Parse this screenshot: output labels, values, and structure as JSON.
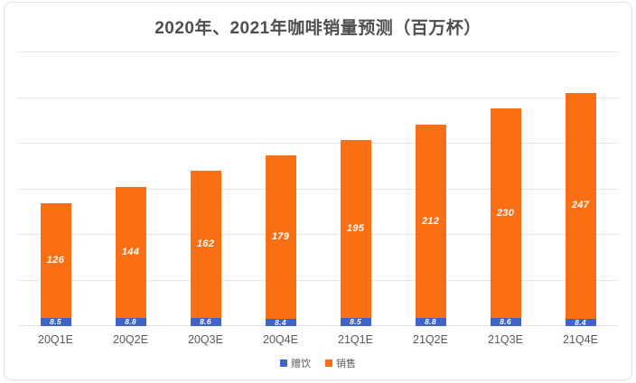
{
  "chart_data": {
    "type": "bar",
    "stacked": true,
    "title": "2020年、2021年咖啡销量预测（百万杯）",
    "categories": [
      "20Q1E",
      "20Q2E",
      "20Q3E",
      "20Q4E",
      "21Q1E",
      "21Q2E",
      "21Q3E",
      "21Q4E"
    ],
    "series": [
      {
        "key": "free-drinks",
        "name": "赠饮",
        "color": "#4063C8",
        "values": [
          8.5,
          8.8,
          8.6,
          8.4,
          8.5,
          8.8,
          8.6,
          8.4
        ]
      },
      {
        "key": "sales",
        "name": "销售",
        "color": "#FA6E14",
        "values": [
          126,
          144,
          162,
          179,
          195,
          212,
          230,
          247
        ]
      }
    ],
    "ylim": [
      0,
      300
    ],
    "gridline_step": 50,
    "grid": true,
    "y_axis_labels_visible": false,
    "legend_position": "bottom",
    "data_labels_color": "#FFFFFF"
  },
  "colors": {
    "background": "#FFFFFF",
    "card_border": "#E3E3E3",
    "gridline": "#E4E4E4",
    "title_text": "#4E4E4E",
    "axis_text": "#595959"
  }
}
